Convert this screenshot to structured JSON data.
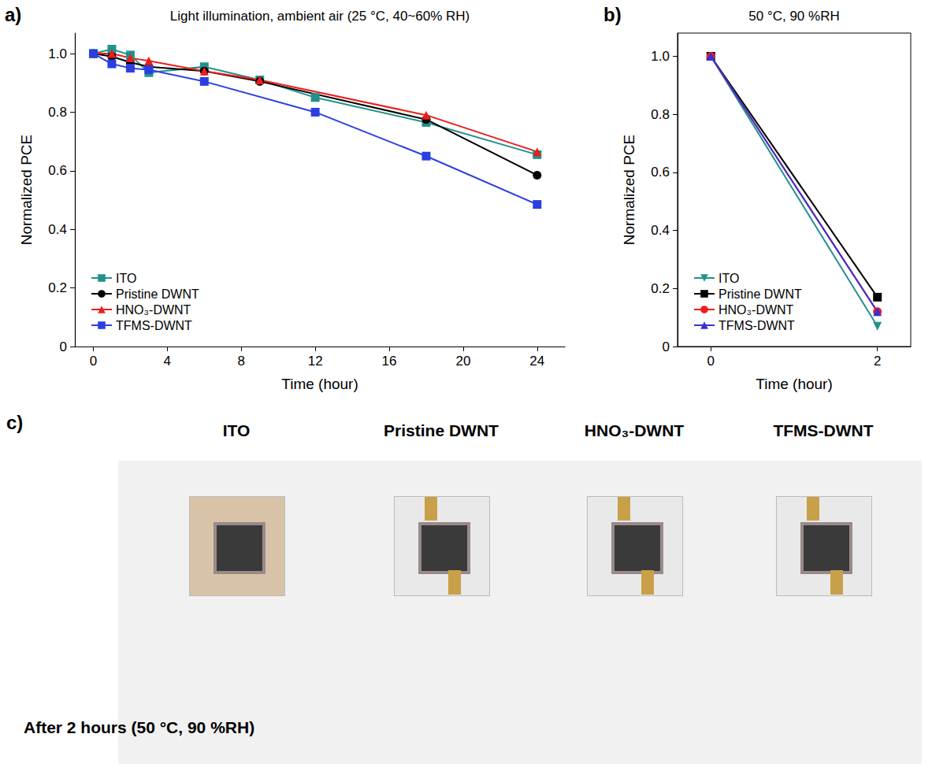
{
  "chart_data": [
    {
      "type": "line",
      "panel": "a)",
      "title": "Light illumination, ambient air (25 °C, 40~60% RH)",
      "x_label": "Time (hour)",
      "y_label": "Normalized PCE",
      "xlim": [
        -1,
        25.5
      ],
      "xticks": [
        0,
        4,
        8,
        12,
        16,
        20,
        24
      ],
      "ylim": [
        0,
        1.07
      ],
      "yticks": [
        0,
        0.2,
        0.4,
        0.6,
        0.8,
        {
          "value": 1,
          "label": "1.0"
        }
      ],
      "grid": false,
      "legend": "lower left",
      "series": [
        {
          "name": "ITO",
          "color": "#23918a",
          "marker": "square",
          "line_style": "solid",
          "x": [
            0,
            1,
            2,
            3,
            6,
            9,
            12,
            18,
            24
          ],
          "values": [
            1.0,
            1.015,
            0.995,
            0.935,
            0.955,
            0.91,
            0.85,
            0.765,
            0.655
          ]
        },
        {
          "name": "Pristine DWNT",
          "color": "#000000",
          "marker": "circle",
          "line_style": "solid",
          "x": [
            0,
            1,
            2,
            3,
            6,
            9,
            18,
            24
          ],
          "values": [
            1.0,
            0.99,
            0.97,
            0.955,
            0.94,
            0.905,
            0.775,
            0.585
          ]
        },
        {
          "name": "HNO₃-DWNT",
          "color": "#ee1c1c",
          "marker": "triangle",
          "line_style": "solid",
          "x": [
            0,
            1,
            2,
            3,
            6,
            9,
            18,
            24
          ],
          "values": [
            1.0,
            1.0,
            0.985,
            0.975,
            0.94,
            0.91,
            0.79,
            0.665
          ]
        },
        {
          "name": "TFMS-DWNT",
          "color": "#2b3fe0",
          "marker": "square",
          "line_style": "solid",
          "x": [
            0,
            1,
            2,
            3,
            6,
            12,
            18,
            24
          ],
          "values": [
            1.0,
            0.965,
            0.95,
            0.945,
            0.905,
            0.8,
            0.65,
            0.485
          ]
        }
      ]
    },
    {
      "type": "line",
      "panel": "b)",
      "title": "50 °C, 90 %RH",
      "x_label": "Time (hour)",
      "y_label": "Normalized PCE",
      "xlim": [
        -0.4,
        2.4
      ],
      "xticks": [
        0,
        2
      ],
      "ylim": [
        0,
        1.08
      ],
      "yticks": [
        0,
        0.2,
        0.4,
        0.6,
        0.8,
        {
          "value": 1,
          "label": "1.0"
        }
      ],
      "grid": false,
      "legend": "lower left",
      "series": [
        {
          "name": "ITO",
          "color": "#23918a",
          "marker": "triangle-down",
          "line_style": "solid",
          "x": [
            0,
            2
          ],
          "values": [
            1.0,
            0.07
          ]
        },
        {
          "name": "Pristine DWNT",
          "color": "#000000",
          "marker": "square",
          "line_style": "solid",
          "x": [
            0,
            2
          ],
          "values": [
            1.0,
            0.17
          ]
        },
        {
          "name": "HNO₃-DWNT",
          "color": "#ee1c1c",
          "marker": "circle",
          "line_style": "solid",
          "x": [
            0,
            2
          ],
          "values": [
            1.0,
            0.12
          ]
        },
        {
          "name": "TFMS-DWNT",
          "color": "#3a2fd6",
          "marker": "triangle",
          "line_style": "solid",
          "x": [
            0,
            2
          ],
          "values": [
            1.0,
            0.12
          ]
        }
      ]
    }
  ],
  "photo_panel": {
    "panel": "c)",
    "labels": [
      "ITO",
      "Pristine DWNT",
      "HNO₃-DWNT",
      "TFMS-DWNT"
    ],
    "caption": "After 2 hours (50 °C, 90 %RH)"
  }
}
